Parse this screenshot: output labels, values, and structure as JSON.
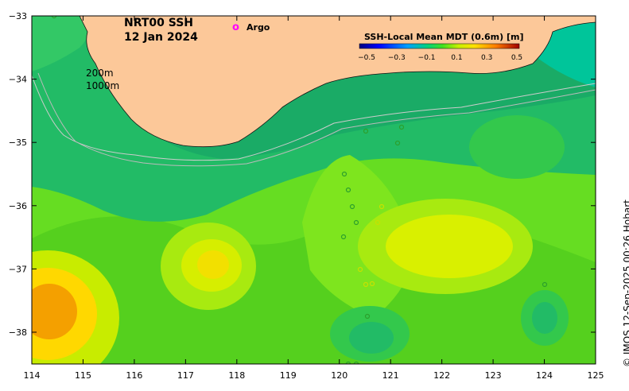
{
  "map": {
    "title_line1": "NRT00 SSH",
    "title_line2": "12 Jan 2024",
    "argo_marker": "o",
    "argo_label": "Argo",
    "isobath_labels": [
      "200m",
      "1000m"
    ],
    "colorbar_title": "SSH-Local Mean MDT (0.6m) [m]",
    "colorbar_ticks": [
      "−0.5",
      "−0.3",
      "−0.1",
      "0.1",
      "0.3",
      "0.5"
    ],
    "x_ticks": [
      "114",
      "115",
      "116",
      "117",
      "118",
      "119",
      "120",
      "121",
      "122",
      "123",
      "124",
      "125"
    ],
    "y_ticks": [
      "−33",
      "−34",
      "−35",
      "−36",
      "−37",
      "−38"
    ],
    "credit": "© IMOS 12-Sep-2025 00:26 Hobart"
  },
  "colors": {
    "land": "#fcc899",
    "argo": "#ff00ff",
    "sea_base": "#66dd22"
  }
}
